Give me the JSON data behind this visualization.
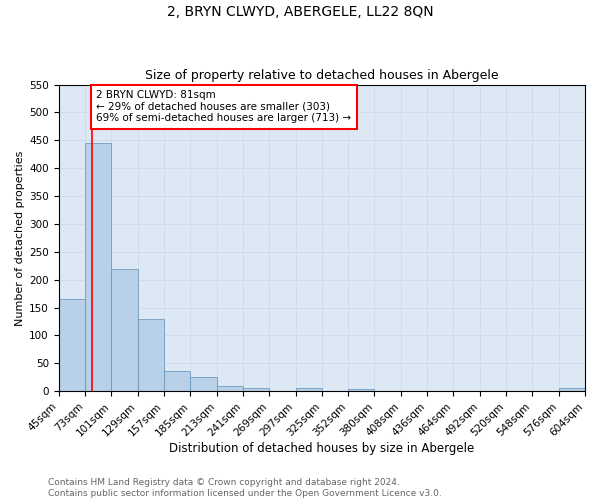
{
  "title": "2, BRYN CLWYD, ABERGELE, LL22 8QN",
  "subtitle": "Size of property relative to detached houses in Abergele",
  "xlabel": "Distribution of detached houses by size in Abergele",
  "ylabel": "Number of detached properties",
  "bar_values": [
    165,
    445,
    220,
    130,
    37,
    25,
    10,
    5,
    0,
    5,
    0,
    4,
    0,
    0,
    0,
    0,
    0,
    0,
    0,
    5
  ],
  "bar_labels": [
    "45sqm",
    "73sqm",
    "101sqm",
    "129sqm",
    "157sqm",
    "185sqm",
    "213sqm",
    "241sqm",
    "269sqm",
    "297sqm",
    "325sqm",
    "352sqm",
    "380sqm",
    "408sqm",
    "436sqm",
    "464sqm",
    "492sqm",
    "520sqm",
    "548sqm",
    "576sqm",
    "604sqm"
  ],
  "bar_color": "#b8d0e8",
  "bar_edge_color": "#6090b8",
  "bar_edge_width": 0.5,
  "grid_color": "#c8d8e8",
  "bg_color": "#dce8f4",
  "ylim": [
    0,
    550
  ],
  "yticks": [
    0,
    50,
    100,
    150,
    200,
    250,
    300,
    350,
    400,
    450,
    500,
    550
  ],
  "annotation_box_text": "2 BRYN CLWYD: 81sqm\n← 29% of detached houses are smaller (303)\n69% of semi-detached houses are larger (713) →",
  "footer_text": "Contains HM Land Registry data © Crown copyright and database right 2024.\nContains public sector information licensed under the Open Government Licence v3.0.",
  "title_fontsize": 10,
  "subtitle_fontsize": 9,
  "xlabel_fontsize": 8.5,
  "ylabel_fontsize": 8,
  "tick_fontsize": 7.5,
  "annotation_fontsize": 7.5,
  "footer_fontsize": 6.5
}
